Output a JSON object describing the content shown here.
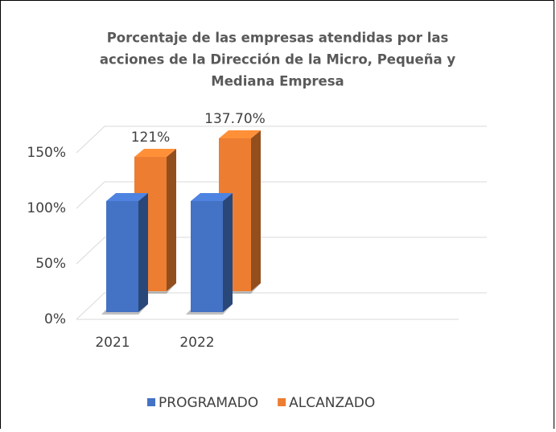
{
  "chart_data": {
    "type": "bar3d",
    "title": [
      "Porcentaje de las empresas atendidas por las",
      "acciones de la Dirección de la Micro, Pequeña y",
      "Mediana Empresa"
    ],
    "categories": [
      "2021",
      "2022"
    ],
    "series": [
      {
        "name": "PROGRAMADO",
        "color": "#4472c4",
        "values": [
          100,
          100
        ]
      },
      {
        "name": "ALCANZADO",
        "color": "#ed7d31",
        "values": [
          121,
          137.7
        ],
        "value_labels": [
          "121%",
          "137.70%"
        ]
      }
    ],
    "ylim": [
      0,
      150
    ],
    "yticks": [
      {
        "value": 0,
        "label": "0%"
      },
      {
        "value": 50,
        "label": "50%"
      },
      {
        "value": 100,
        "label": "100%"
      },
      {
        "value": 150,
        "label": "150%"
      }
    ],
    "grid": true,
    "legend": "bottom"
  }
}
